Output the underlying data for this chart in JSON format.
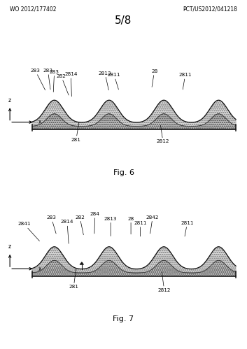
{
  "bg_color": "#ffffff",
  "page_num": "5/8",
  "header_left": "WO 2012/177402",
  "header_right": "PCT/US2012/041218",
  "fig6_label": "Fig. 6",
  "fig7_label": "Fig. 7",
  "text_color": "#000000"
}
